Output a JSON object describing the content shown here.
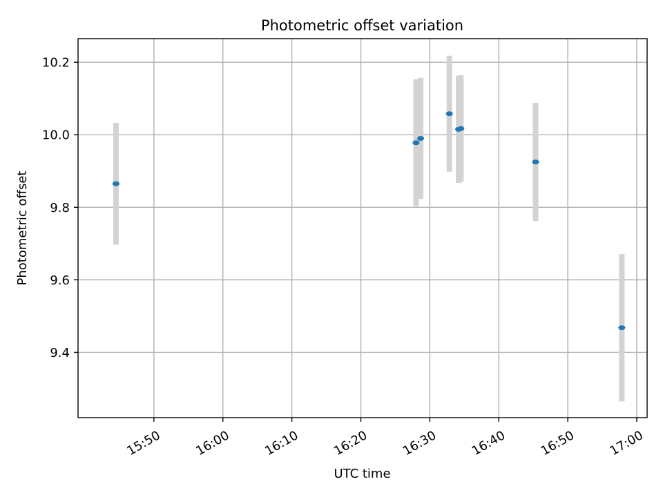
{
  "chart_data": {
    "type": "scatter",
    "title": "Photometric offset variation",
    "xlabel": "UTC time",
    "ylabel": "Photometric offset",
    "x_axis_type": "time",
    "xlim": [
      "15:39",
      "17:01:30"
    ],
    "ylim": [
      9.22,
      10.265
    ],
    "x_ticks": [
      "15:50",
      "16:00",
      "16:10",
      "16:20",
      "16:30",
      "16:40",
      "16:50",
      "17:00"
    ],
    "y_ticks": [
      9.4,
      9.6,
      9.8,
      10.0,
      10.2
    ],
    "y_tick_labels": [
      "9.4",
      "9.6",
      "9.8",
      "10.0",
      "10.2"
    ],
    "grid": true,
    "marker_color": "#1f77b4",
    "errorbar_color": "#d3d3d3",
    "points": [
      {
        "x": "15:44:30",
        "y": 9.865,
        "err": 0.168
      },
      {
        "x": "16:28:00",
        "y": 9.978,
        "err": 0.175
      },
      {
        "x": "16:28:40",
        "y": 9.99,
        "err": 0.167
      },
      {
        "x": "16:32:50",
        "y": 10.058,
        "err": 0.16
      },
      {
        "x": "16:34:10",
        "y": 10.015,
        "err": 0.148
      },
      {
        "x": "16:34:30",
        "y": 10.017,
        "err": 0.147
      },
      {
        "x": "16:45:20",
        "y": 9.925,
        "err": 0.163
      },
      {
        "x": "16:57:50",
        "y": 9.468,
        "err": 0.203
      }
    ]
  }
}
